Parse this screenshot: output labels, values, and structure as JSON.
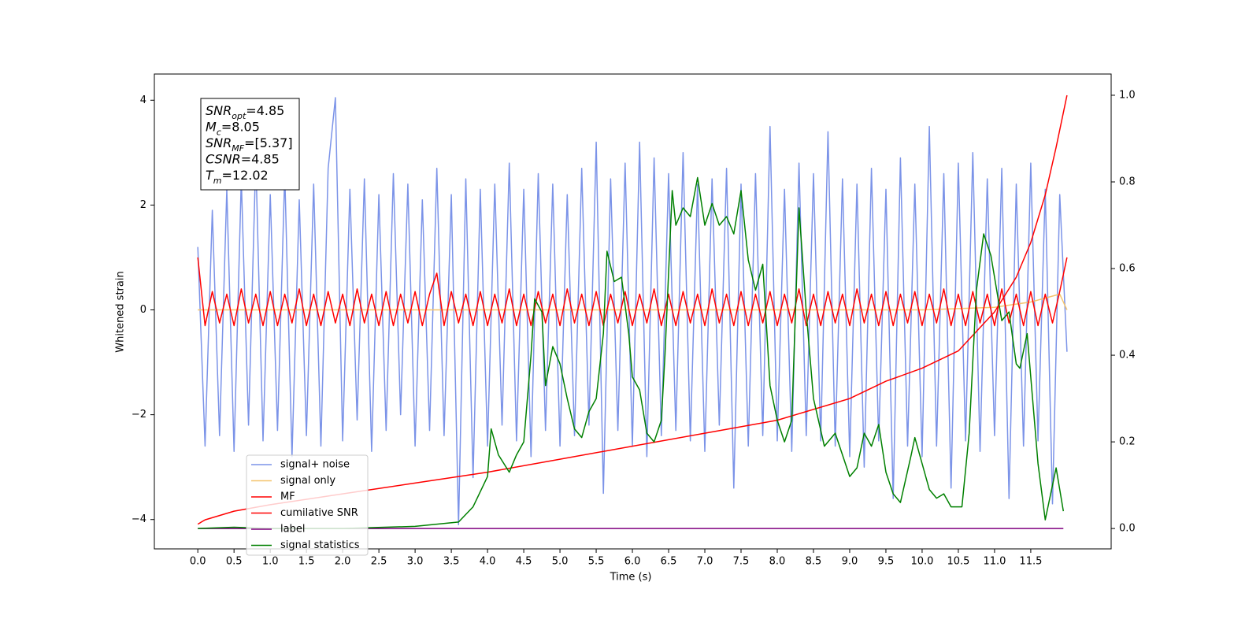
{
  "chart_data": {
    "type": "line",
    "xlabel": "Time (s)",
    "ylabel": "Whitened strain",
    "xlim": [
      -0.6,
      12.61
    ],
    "ylim": [
      -4.56,
      4.5
    ],
    "y2lim": [
      -0.047,
      1.049
    ],
    "xticks": [
      {
        "value": 0,
        "label": "0.0"
      },
      {
        "value": 0.5,
        "label": "0.5"
      },
      {
        "value": 1,
        "label": "1.0"
      },
      {
        "value": 1.5,
        "label": "1.5"
      },
      {
        "value": 2,
        "label": "2.0"
      },
      {
        "value": 2.5,
        "label": "2.5"
      },
      {
        "value": 3,
        "label": "3.0"
      },
      {
        "value": 3.5,
        "label": "3.5"
      },
      {
        "value": 4,
        "label": "4.0"
      },
      {
        "value": 4.5,
        "label": "4.5"
      },
      {
        "value": 5,
        "label": "5.0"
      },
      {
        "value": 5.5,
        "label": "5.5"
      },
      {
        "value": 6,
        "label": "6.0"
      },
      {
        "value": 6.5,
        "label": "6.5"
      },
      {
        "value": 7,
        "label": "7.0"
      },
      {
        "value": 7.5,
        "label": "7.5"
      },
      {
        "value": 8,
        "label": "8.0"
      },
      {
        "value": 8.5,
        "label": "8.5"
      },
      {
        "value": 9,
        "label": "9.0"
      },
      {
        "value": 9.5,
        "label": "9.5"
      },
      {
        "value": 10,
        "label": "10.0"
      },
      {
        "value": 10.5,
        "label": "10.5"
      },
      {
        "value": 11,
        "label": "11.0"
      },
      {
        "value": 11.5,
        "label": "11.5"
      }
    ],
    "yticks": [
      {
        "value": -4,
        "label": "−4"
      },
      {
        "value": -2,
        "label": "−2"
      },
      0,
      2,
      4
    ],
    "y2ticks": [
      {
        "value": 0,
        "label": "0.0"
      },
      {
        "value": 0.2,
        "label": "0.2"
      },
      {
        "value": 0.4,
        "label": "0.4"
      },
      {
        "value": 0.6,
        "label": "0.6"
      },
      {
        "value": 0.8,
        "label": "0.8"
      },
      {
        "value": 1,
        "label": "1.0"
      }
    ],
    "grid": false,
    "legend": "lower left",
    "annotations": [
      {
        "symbol": "SNR",
        "subscript": "opt",
        "text": "=4.85"
      },
      {
        "symbol": "M",
        "subscript": "c",
        "text": "=8.05"
      },
      {
        "symbol": "SNR",
        "subscript": "MF",
        "text": "=[5.37]"
      },
      {
        "symbol": "CSNR",
        "text": "=4.85"
      },
      {
        "symbol": "T",
        "subscript": "m",
        "text": "=12.02"
      }
    ],
    "x": [
      0,
      0.1,
      0.2,
      0.3,
      0.4,
      0.5,
      0.6,
      0.7,
      0.8,
      0.9,
      1,
      1.1,
      1.2,
      1.3,
      1.4,
      1.5,
      1.6,
      1.7,
      1.8,
      1.9,
      2,
      2.1,
      2.2,
      2.3,
      2.4,
      2.5,
      2.6,
      2.7,
      2.8,
      2.9,
      3,
      3.1,
      3.2,
      3.3,
      3.4,
      3.5,
      3.6,
      3.7,
      3.8,
      3.9,
      4,
      4.1,
      4.2,
      4.3,
      4.4,
      4.5,
      4.6,
      4.7,
      4.8,
      4.9,
      5,
      5.1,
      5.2,
      5.3,
      5.4,
      5.5,
      5.6,
      5.7,
      5.8,
      5.9,
      6,
      6.1,
      6.2,
      6.3,
      6.4,
      6.5,
      6.6,
      6.7,
      6.8,
      6.9,
      7,
      7.1,
      7.2,
      7.3,
      7.4,
      7.5,
      7.6,
      7.7,
      7.8,
      7.9,
      8,
      8.1,
      8.2,
      8.3,
      8.4,
      8.5,
      8.6,
      8.7,
      8.8,
      8.9,
      9,
      9.1,
      9.2,
      9.3,
      9.4,
      9.5,
      9.6,
      9.7,
      9.8,
      9.9,
      10,
      10.1,
      10.2,
      10.3,
      10.4,
      10.5,
      10.6,
      10.7,
      10.8,
      10.9,
      11,
      11.1,
      11.2,
      11.3,
      11.4,
      11.5,
      11.6,
      11.7,
      11.8,
      11.9,
      12
    ],
    "series": [
      {
        "name": "signal+ noise",
        "color": "#7b93e8",
        "values": [
          1.2,
          -2.6,
          1.9,
          -2.4,
          2.3,
          -2.7,
          2.5,
          -2.2,
          2.9,
          -2.5,
          2.2,
          -2.3,
          2.6,
          -2.8,
          2.1,
          -2.4,
          2.4,
          -2.6,
          2.7,
          4.05,
          -2.5,
          2.3,
          -2.1,
          2.5,
          -2.7,
          2.2,
          -2.3,
          2.6,
          -2.0,
          2.4,
          -2.6,
          2.1,
          -2.3,
          2.7,
          -2.4,
          2.2,
          -4.1,
          2.5,
          -3.2,
          2.3,
          -2.6,
          2.4,
          -2.2,
          2.8,
          -2.5,
          2.3,
          -2.8,
          2.6,
          -2.3,
          2.4,
          -2.6,
          2.2,
          -2.4,
          2.7,
          -2.2,
          3.2,
          -3.5,
          2.5,
          -2.3,
          2.8,
          -2.6,
          3.2,
          -2.8,
          2.9,
          -2.4,
          2.6,
          -2.3,
          3.0,
          -2.5,
          2.4,
          -2.7,
          2.5,
          -2.2,
          2.7,
          -3.4,
          2.4,
          -2.6,
          2.6,
          -2.4,
          3.5,
          -2.5,
          2.3,
          -2.7,
          2.8,
          -2.4,
          2.6,
          -2.5,
          3.4,
          -2.6,
          2.5,
          -2.8,
          2.4,
          -3.0,
          2.7,
          -2.5,
          2.3,
          -3.6,
          2.9,
          -2.6,
          2.4,
          -2.8,
          3.5,
          -2.6,
          2.6,
          -3.4,
          2.8,
          -2.5,
          3.0,
          -2.7,
          2.5,
          -2.4,
          2.7,
          -3.6,
          2.4,
          -2.6,
          2.8,
          -2.5,
          2.3,
          -3.7,
          2.2,
          -0.8
        ]
      },
      {
        "name": "signal only",
        "color": "#f5c46e",
        "x": [
          0,
          10,
          11,
          11.5,
          11.9,
          12
        ],
        "values": [
          0,
          0,
          0.05,
          0.15,
          0.3,
          0
        ]
      },
      {
        "name": "MF",
        "color": "#ff0000",
        "values": [
          1.0,
          -0.3,
          0.35,
          -0.25,
          0.3,
          -0.3,
          0.4,
          -0.25,
          0.3,
          -0.3,
          0.35,
          -0.3,
          0.3,
          -0.25,
          0.4,
          -0.3,
          0.3,
          -0.3,
          0.35,
          -0.25,
          0.3,
          -0.3,
          0.4,
          -0.25,
          0.3,
          -0.3,
          0.35,
          -0.3,
          0.3,
          -0.25,
          0.35,
          -0.3,
          0.3,
          0.7,
          -0.3,
          0.35,
          -0.25,
          0.3,
          -0.3,
          0.35,
          -0.3,
          0.3,
          -0.25,
          0.4,
          -0.3,
          0.3,
          -0.3,
          0.35,
          -0.25,
          0.3,
          -0.3,
          0.4,
          -0.25,
          0.3,
          -0.3,
          0.35,
          -0.3,
          0.3,
          -0.25,
          0.35,
          -0.3,
          0.3,
          -0.25,
          0.4,
          -0.3,
          0.3,
          -0.3,
          0.35,
          -0.25,
          0.3,
          -0.3,
          0.4,
          -0.25,
          0.3,
          -0.3,
          0.35,
          -0.3,
          0.3,
          -0.25,
          0.35,
          -0.3,
          0.3,
          -0.25,
          0.4,
          -0.3,
          0.3,
          -0.3,
          0.35,
          -0.25,
          0.3,
          -0.3,
          0.4,
          -0.25,
          0.3,
          -0.3,
          0.35,
          -0.3,
          0.3,
          -0.25,
          0.35,
          -0.3,
          0.3,
          -0.25,
          0.4,
          -0.3,
          0.3,
          -0.3,
          0.35,
          -0.25,
          0.3,
          -0.3,
          0.4,
          -0.25,
          0.3,
          -0.3,
          0.35,
          -0.3,
          0.3,
          -0.25,
          0.35,
          1.0
        ]
      },
      {
        "name": "cumilative SNR",
        "color": "#ff0000",
        "axis": "y2",
        "x": [
          0,
          0.1,
          0.5,
          1,
          2,
          3,
          4,
          5,
          6,
          7,
          8,
          9,
          9.5,
          10,
          10.5,
          11,
          11.3,
          11.5,
          11.7,
          11.85,
          12
        ],
        "values": [
          0.01,
          0.02,
          0.04,
          0.055,
          0.08,
          0.105,
          0.13,
          0.16,
          0.19,
          0.22,
          0.25,
          0.3,
          0.34,
          0.37,
          0.41,
          0.5,
          0.58,
          0.66,
          0.77,
          0.88,
          1.0
        ]
      },
      {
        "name": "label",
        "color": "#800080",
        "axis": "y2",
        "x": [
          0,
          11.95
        ],
        "values": [
          0,
          0
        ]
      },
      {
        "name": "signal statistics",
        "color": "#008000",
        "axis": "y2",
        "x": [
          0,
          0.5,
          1,
          2,
          3,
          3.3,
          3.6,
          3.8,
          4,
          4.05,
          4.15,
          4.3,
          4.4,
          4.5,
          4.6,
          4.65,
          4.75,
          4.8,
          4.9,
          5,
          5.1,
          5.2,
          5.3,
          5.4,
          5.5,
          5.6,
          5.65,
          5.75,
          5.85,
          5.95,
          6,
          6.1,
          6.2,
          6.3,
          6.4,
          6.45,
          6.55,
          6.6,
          6.7,
          6.8,
          6.9,
          7,
          7.1,
          7.2,
          7.3,
          7.4,
          7.5,
          7.6,
          7.7,
          7.8,
          7.9,
          8,
          8.1,
          8.2,
          8.3,
          8.4,
          8.5,
          8.65,
          8.8,
          9,
          9.1,
          9.2,
          9.3,
          9.4,
          9.5,
          9.6,
          9.7,
          9.85,
          9.9,
          10,
          10.1,
          10.2,
          10.3,
          10.4,
          10.55,
          10.65,
          10.75,
          10.85,
          10.95,
          11.1,
          11.2,
          11.3,
          11.35,
          11.45,
          11.6,
          11.7,
          11.85,
          11.95
        ],
        "values": [
          0,
          0.003,
          0,
          0,
          0.005,
          0.01,
          0.015,
          0.05,
          0.12,
          0.23,
          0.17,
          0.13,
          0.17,
          0.2,
          0.4,
          0.53,
          0.5,
          0.33,
          0.42,
          0.38,
          0.3,
          0.23,
          0.21,
          0.27,
          0.3,
          0.45,
          0.64,
          0.57,
          0.58,
          0.45,
          0.35,
          0.32,
          0.22,
          0.2,
          0.25,
          0.4,
          0.78,
          0.7,
          0.74,
          0.72,
          0.81,
          0.7,
          0.75,
          0.7,
          0.72,
          0.68,
          0.78,
          0.62,
          0.55,
          0.61,
          0.33,
          0.25,
          0.2,
          0.25,
          0.74,
          0.5,
          0.3,
          0.19,
          0.22,
          0.12,
          0.14,
          0.22,
          0.19,
          0.24,
          0.13,
          0.08,
          0.06,
          0.17,
          0.21,
          0.15,
          0.09,
          0.07,
          0.08,
          0.05,
          0.05,
          0.22,
          0.55,
          0.68,
          0.63,
          0.48,
          0.5,
          0.38,
          0.37,
          0.45,
          0.15,
          0.02,
          0.14,
          0.04
        ]
      }
    ]
  }
}
